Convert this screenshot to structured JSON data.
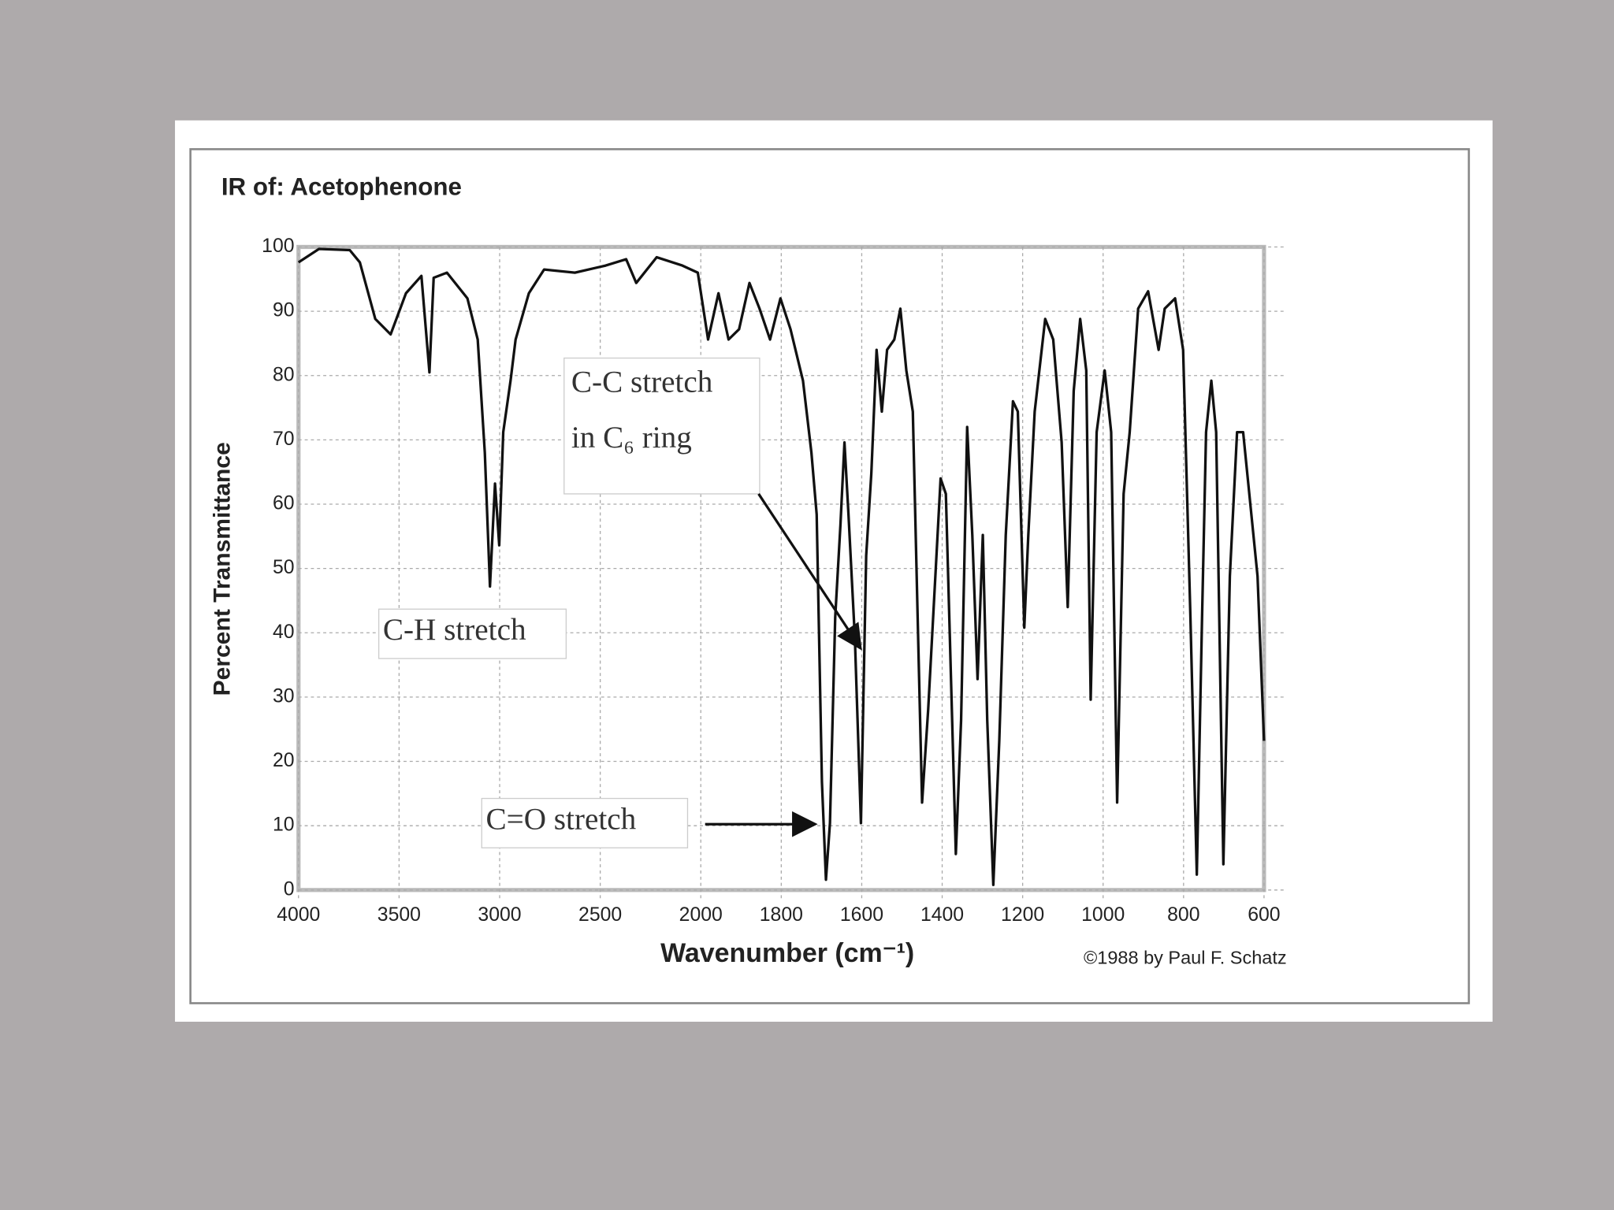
{
  "chart_data": {
    "type": "line",
    "title": "IR of: Acetophenone",
    "xlabel": "Wavenumber (cm⁻¹)",
    "ylabel": "Percent Transmittance",
    "credit": "©1988 by Paul F. Schatz",
    "annotations": [
      "C-C stretch",
      "in C₆ ring",
      "C-H stretch",
      "C=O stretch"
    ],
    "xlim": [
      4000,
      600
    ],
    "ylim": [
      0,
      100
    ],
    "x_scale_break": 2000,
    "x_scale_ratio": 2,
    "xticks": [
      4000,
      3500,
      3000,
      2500,
      2000,
      1800,
      1600,
      1400,
      1200,
      1000,
      800,
      600
    ],
    "yticks": [
      0,
      10,
      20,
      30,
      40,
      50,
      60,
      70,
      80,
      90,
      100
    ],
    "grid": true,
    "series": [
      {
        "color": "#111111",
        "x": [
          4000,
          3898,
          3745,
          3695,
          3618,
          3542,
          3466,
          3389,
          3349,
          3328,
          3262,
          3160,
          3109,
          3074,
          3048,
          3023,
          3002,
          2982,
          2946,
          2921,
          2855,
          2779,
          2626,
          2473,
          2371,
          2321,
          2219,
          2092,
          2015,
          1982,
          1956,
          1931,
          1905,
          1879,
          1854,
          1828,
          1802,
          1777,
          1746,
          1725,
          1712,
          1699,
          1689,
          1679,
          1666,
          1653,
          1643,
          1633,
          1617,
          1602,
          1589,
          1576,
          1563,
          1550,
          1537,
          1519,
          1504,
          1489,
          1473,
          1461,
          1450,
          1435,
          1417,
          1404,
          1391,
          1381,
          1366,
          1353,
          1338,
          1325,
          1312,
          1299,
          1288,
          1273,
          1258,
          1242,
          1224,
          1212,
          1196,
          1186,
          1170,
          1144,
          1124,
          1103,
          1088,
          1073,
          1057,
          1042,
          1031,
          1016,
          996,
          980,
          965,
          949,
          934,
          913,
          888,
          862,
          847,
          821,
          801,
          783,
          767,
          754,
          744,
          731,
          719,
          701,
          685,
          667,
          652,
          634,
          616,
          600
        ],
        "values": [
          97.6,
          99.7,
          99.5,
          97.6,
          88.8,
          86.4,
          92.8,
          95.5,
          80.5,
          95.2,
          96,
          92,
          85.6,
          68,
          47.2,
          63.2,
          53.6,
          71.2,
          79.2,
          85.6,
          92.8,
          96.5,
          96,
          97.1,
          98.1,
          94.4,
          98.4,
          97.1,
          96,
          85.6,
          92.8,
          85.6,
          87.2,
          94.4,
          90.4,
          85.6,
          92,
          87.2,
          79.2,
          68,
          58.4,
          16.8,
          1.6,
          10.4,
          42.4,
          56.8,
          69.6,
          58.4,
          39.2,
          10.4,
          52,
          64.8,
          84,
          74.4,
          84,
          85.6,
          90.4,
          80.8,
          74.4,
          42.4,
          13.6,
          28,
          48.8,
          64,
          61.6,
          39.2,
          5.6,
          26.4,
          72,
          55.2,
          32.8,
          55.2,
          26.4,
          0.8,
          23.2,
          55.2,
          76,
          74.4,
          40.8,
          55.2,
          74.4,
          88.8,
          85.6,
          69.6,
          44,
          77.6,
          88.8,
          80.8,
          29.6,
          71.2,
          80.8,
          71.2,
          13.6,
          61.6,
          71.2,
          90.4,
          93.1,
          84,
          90.4,
          92,
          84,
          42.4,
          2.4,
          42.4,
          71.2,
          79.2,
          71.2,
          4,
          48.8,
          71.2,
          71.2,
          60,
          48.8,
          23.2
        ]
      }
    ]
  }
}
